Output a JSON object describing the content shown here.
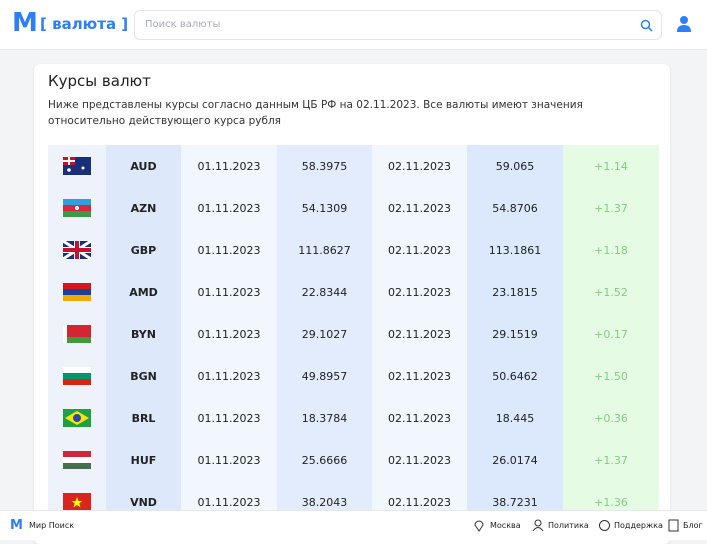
{
  "header": {
    "logo": "M",
    "brand": "[ валюта ]",
    "search_placeholder": "Поиск валюты"
  },
  "card": {
    "title": "Курсы валют",
    "description": "Ниже представлены курсы согласно данным ЦБ РФ на 02.11.2023. Все валюты имеют значения относительно действующего курса рубля"
  },
  "table": {
    "rows": [
      {
        "code": "AUD",
        "date_from": "01.11.2023",
        "rate_from": "58.3975",
        "date_to": "02.11.2023",
        "rate_to": "59.065",
        "change": "+1.14"
      },
      {
        "code": "AZN",
        "date_from": "01.11.2023",
        "rate_from": "54.1309",
        "date_to": "02.11.2023",
        "rate_to": "54.8706",
        "change": "+1.37"
      },
      {
        "code": "GBP",
        "date_from": "01.11.2023",
        "rate_from": "111.8627",
        "date_to": "02.11.2023",
        "rate_to": "113.1861",
        "change": "+1.18"
      },
      {
        "code": "AMD",
        "date_from": "01.11.2023",
        "rate_from": "22.8344",
        "date_to": "02.11.2023",
        "rate_to": "23.1815",
        "change": "+1.52"
      },
      {
        "code": "BYN",
        "date_from": "01.11.2023",
        "rate_from": "29.1027",
        "date_to": "02.11.2023",
        "rate_to": "29.1519",
        "change": "+0.17"
      },
      {
        "code": "BGN",
        "date_from": "01.11.2023",
        "rate_from": "49.8957",
        "date_to": "02.11.2023",
        "rate_to": "50.6462",
        "change": "+1.50"
      },
      {
        "code": "BRL",
        "date_from": "01.11.2023",
        "rate_from": "18.3784",
        "date_to": "02.11.2023",
        "rate_to": "18.445",
        "change": "+0.36"
      },
      {
        "code": "HUF",
        "date_from": "01.11.2023",
        "rate_from": "25.6666",
        "date_to": "02.11.2023",
        "rate_to": "26.0174",
        "change": "+1.37"
      },
      {
        "code": "VND",
        "date_from": "01.11.2023",
        "rate_from": "38.2043",
        "date_to": "02.11.2023",
        "rate_to": "38.7231",
        "change": "+1.36"
      }
    ]
  },
  "footer": {
    "brand": "Мир Поиск",
    "links": [
      "Москва",
      "Политика",
      "Поддержка",
      "Блог"
    ]
  }
}
